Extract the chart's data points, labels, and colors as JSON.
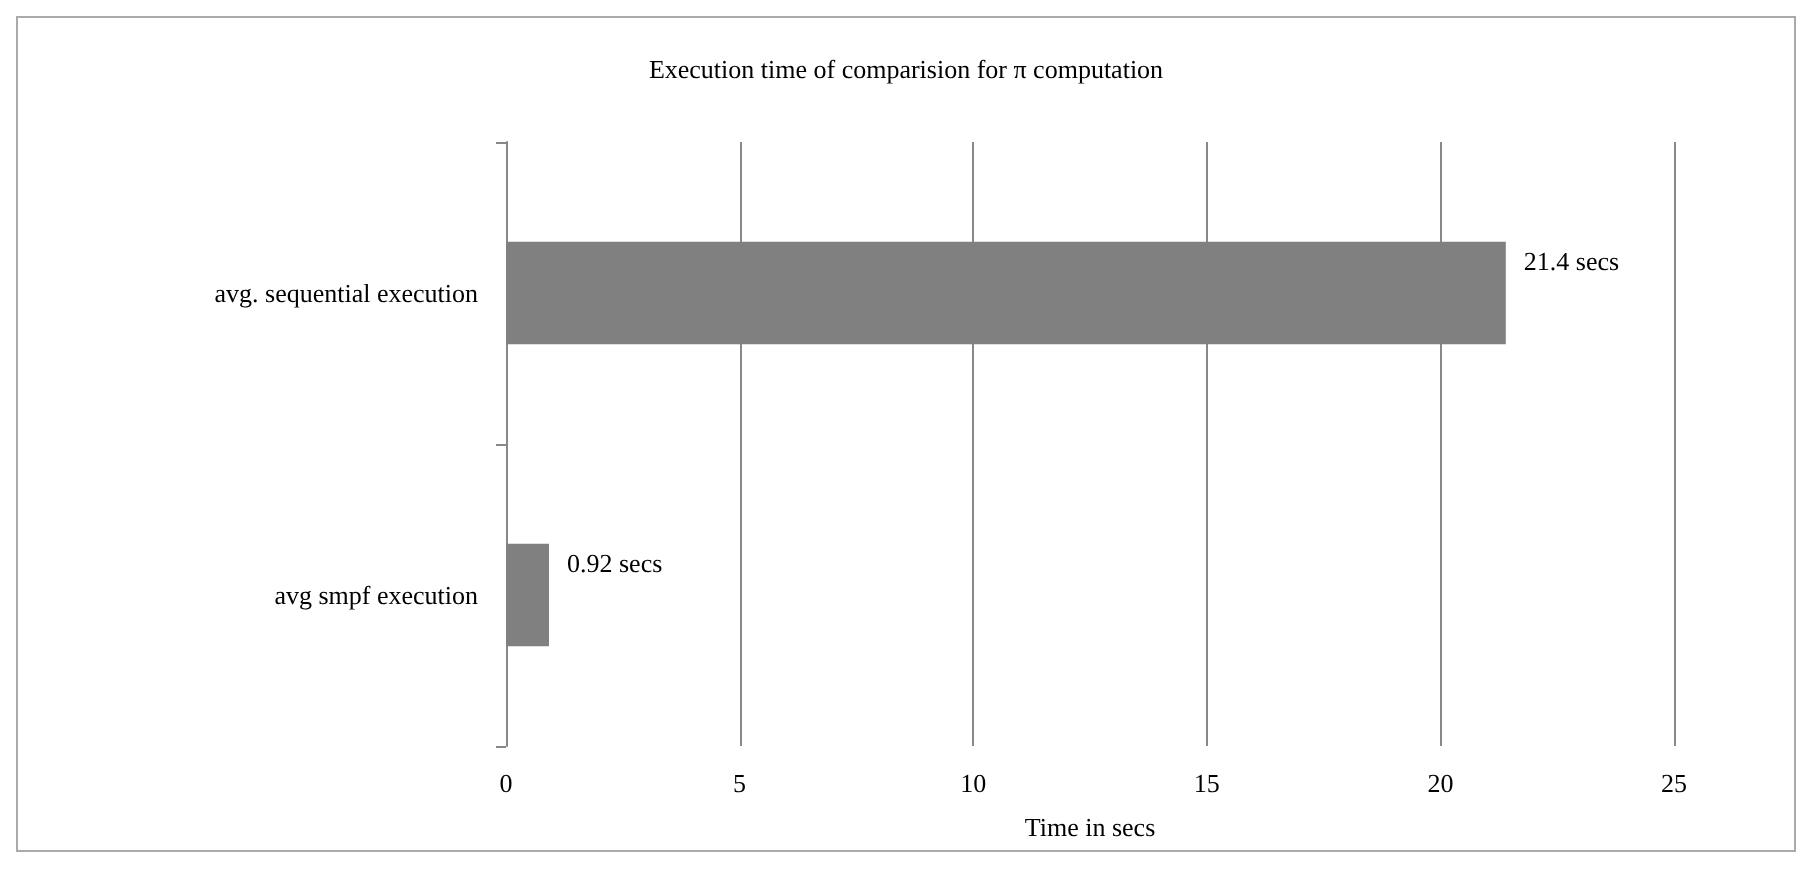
{
  "chart_data": {
    "type": "bar",
    "orientation": "horizontal",
    "title": "Execution time of comparision for π computation",
    "xlabel": "Time in secs",
    "categories": [
      "avg. sequential execution",
      "avg smpf execution"
    ],
    "values": [
      21.4,
      0.92
    ],
    "value_labels": [
      "21.4 secs",
      "0.92 secs"
    ],
    "color": "#808080",
    "xlim": [
      0,
      25
    ],
    "xticks": [
      0,
      5,
      10,
      15,
      20,
      25
    ],
    "grid": "x"
  }
}
